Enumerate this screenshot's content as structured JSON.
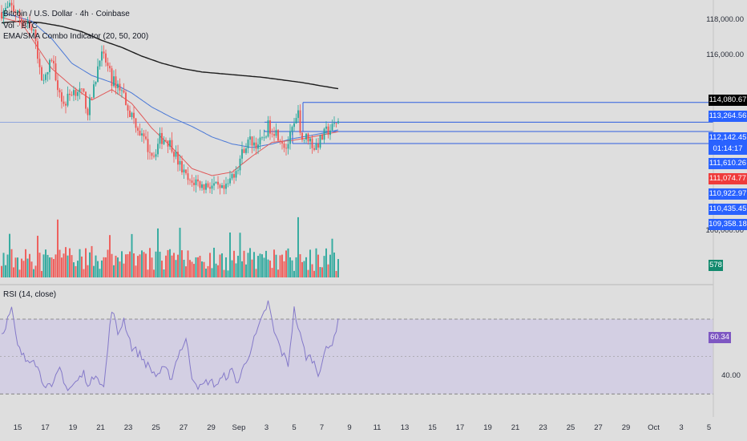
{
  "header": {
    "title": "Bitcoin / U.S. Dollar · 4h · Coinbase",
    "vol_label": "Vol · BTC",
    "indicator_label": "EMA/SMA Combo Indicator (20, 50, 200)"
  },
  "rsi": {
    "label": "RSI (14, close)",
    "current": "60.34",
    "upper": 70,
    "lower": 30,
    "ylim": [
      22,
      82
    ],
    "tick_label": "40.00"
  },
  "colors": {
    "bull": "#26a69a",
    "bear": "#ef5350",
    "ema20": "#e05a5a",
    "ema50": "#4a78d6",
    "sma200": "#1c1c1c",
    "level": "#2f5fe0",
    "rsi_line": "#8479c9",
    "rsi_band": "#cfcbe3",
    "last_price_bg": "#000000",
    "current_bg": "#ef3b3b",
    "level_bg": "#2962ff",
    "rsi_tag_bg": "#7e57c2",
    "vol_tag_bg": "#138a6e"
  },
  "price_axis": {
    "ticks": [
      "118,000.00",
      "116,000.00",
      "106,000.00"
    ]
  },
  "price_tags": [
    {
      "text": "114,080.67",
      "price": 114080.67,
      "kind": "last"
    },
    {
      "text": "113,264.56",
      "price": 113264.56,
      "kind": "level"
    },
    {
      "text": "112,142.45",
      "price": 112142.45,
      "kind": "level"
    },
    {
      "text": "01:14:17",
      "price": 111900,
      "kind": "level"
    },
    {
      "text": "111,610.26",
      "price": 111610.26,
      "kind": "level"
    },
    {
      "text": "111,074.77",
      "price": 111074.77,
      "kind": "current"
    },
    {
      "text": "110,922.97",
      "price": 110922.97,
      "kind": "level"
    },
    {
      "text": "110,435.45",
      "price": 110435.45,
      "kind": "level"
    },
    {
      "text": "109,358.18",
      "price": 109358.18,
      "kind": "level"
    }
  ],
  "volume_tag": "578",
  "time_axis": {
    "labels": [
      "15",
      "17",
      "19",
      "21",
      "23",
      "25",
      "27",
      "29",
      "Sep",
      "3",
      "5",
      "7",
      "9",
      "11",
      "13",
      "15",
      "17",
      "19",
      "21",
      "23",
      "25",
      "27",
      "29",
      "Oct",
      "3",
      "5"
    ]
  },
  "chart_data": {
    "type": "candlestick",
    "interval": "4h",
    "ylim": [
      105400,
      119100
    ],
    "levels": [
      113264.56,
      112142.45,
      111610.26,
      110922.97
    ],
    "waypoints": [
      [
        0,
        118400
      ],
      [
        5,
        118700
      ],
      [
        9,
        118100
      ],
      [
        13,
        117600
      ],
      [
        17,
        117000
      ],
      [
        19,
        115000
      ],
      [
        22,
        114600
      ],
      [
        25,
        115800
      ],
      [
        28,
        114300
      ],
      [
        31,
        113100
      ],
      [
        35,
        113900
      ],
      [
        38,
        114000
      ],
      [
        41,
        113600
      ],
      [
        43,
        112800
      ],
      [
        46,
        114000
      ],
      [
        49,
        116000
      ],
      [
        52,
        115600
      ],
      [
        55,
        114500
      ],
      [
        58,
        114300
      ],
      [
        61,
        113700
      ],
      [
        64,
        112700
      ],
      [
        67,
        112100
      ],
      [
        70,
        111300
      ],
      [
        73,
        110700
      ],
      [
        76,
        110300
      ],
      [
        79,
        111200
      ],
      [
        82,
        111200
      ],
      [
        85,
        110800
      ],
      [
        88,
        109900
      ],
      [
        91,
        109200
      ],
      [
        94,
        108600
      ],
      [
        97,
        108800
      ],
      [
        100,
        108500
      ],
      [
        103,
        108600
      ],
      [
        106,
        108500
      ],
      [
        109,
        108200
      ],
      [
        112,
        108300
      ],
      [
        115,
        109100
      ],
      [
        118,
        109700
      ],
      [
        121,
        110700
      ],
      [
        124,
        111100
      ],
      [
        127,
        110900
      ],
      [
        130,
        111000
      ],
      [
        133,
        111900
      ],
      [
        136,
        111700
      ],
      [
        139,
        111300
      ],
      [
        142,
        110700
      ],
      [
        145,
        111600
      ],
      [
        148,
        112500
      ],
      [
        150,
        111200
      ],
      [
        153,
        111300
      ],
      [
        156,
        110700
      ],
      [
        159,
        111100
      ],
      [
        162,
        111600
      ],
      [
        165,
        111800
      ],
      [
        168,
        112200
      ]
    ],
    "sma200": [
      [
        0,
        117800
      ],
      [
        10,
        117900
      ],
      [
        20,
        117800
      ],
      [
        30,
        117600
      ],
      [
        40,
        117300
      ],
      [
        50,
        116800
      ],
      [
        60,
        116400
      ],
      [
        70,
        115900
      ],
      [
        80,
        115500
      ],
      [
        90,
        115200
      ],
      [
        100,
        115000
      ],
      [
        110,
        114900
      ],
      [
        120,
        114800
      ],
      [
        130,
        114700
      ],
      [
        140,
        114550
      ],
      [
        150,
        114400
      ],
      [
        160,
        114200
      ],
      [
        168,
        114050
      ]
    ],
    "ema20": [
      [
        0,
        118100
      ],
      [
        10,
        117800
      ],
      [
        18,
        116400
      ],
      [
        25,
        115200
      ],
      [
        35,
        114200
      ],
      [
        45,
        113400
      ],
      [
        55,
        114000
      ],
      [
        65,
        113200
      ],
      [
        75,
        111800
      ],
      [
        85,
        110700
      ],
      [
        95,
        109500
      ],
      [
        105,
        109100
      ],
      [
        115,
        109300
      ],
      [
        125,
        110200
      ],
      [
        135,
        111000
      ],
      [
        145,
        111100
      ],
      [
        155,
        111300
      ],
      [
        168,
        111600
      ]
    ],
    "ema50": [
      [
        0,
        118400
      ],
      [
        15,
        117900
      ],
      [
        25,
        116900
      ],
      [
        35,
        115500
      ],
      [
        45,
        114800
      ],
      [
        55,
        114400
      ],
      [
        65,
        113800
      ],
      [
        75,
        113000
      ],
      [
        85,
        112400
      ],
      [
        95,
        111900
      ],
      [
        105,
        111300
      ],
      [
        115,
        110900
      ],
      [
        125,
        110700
      ],
      [
        135,
        110900
      ],
      [
        145,
        111200
      ],
      [
        155,
        111400
      ],
      [
        168,
        111700
      ]
    ],
    "rsi_waypoints": [
      [
        0,
        62
      ],
      [
        5,
        75
      ],
      [
        8,
        55
      ],
      [
        12,
        48
      ],
      [
        16,
        50
      ],
      [
        20,
        38
      ],
      [
        25,
        32
      ],
      [
        29,
        44
      ],
      [
        33,
        32
      ],
      [
        37,
        36
      ],
      [
        41,
        41
      ],
      [
        44,
        34
      ],
      [
        47,
        42
      ],
      [
        51,
        33
      ],
      [
        55,
        76
      ],
      [
        58,
        62
      ],
      [
        61,
        70
      ],
      [
        65,
        55
      ],
      [
        69,
        51
      ],
      [
        73,
        45
      ],
      [
        77,
        40
      ],
      [
        81,
        43
      ],
      [
        85,
        39
      ],
      [
        88,
        51
      ],
      [
        92,
        59
      ],
      [
        95,
        40
      ],
      [
        99,
        33
      ],
      [
        103,
        37
      ],
      [
        107,
        35
      ],
      [
        111,
        39
      ],
      [
        115,
        42
      ],
      [
        118,
        36
      ],
      [
        121,
        45
      ],
      [
        125,
        56
      ],
      [
        129,
        67
      ],
      [
        133,
        79
      ],
      [
        136,
        63
      ],
      [
        140,
        52
      ],
      [
        143,
        46
      ],
      [
        146,
        75
      ],
      [
        149,
        61
      ],
      [
        152,
        50
      ],
      [
        155,
        49
      ],
      [
        158,
        41
      ],
      [
        161,
        52
      ],
      [
        164,
        55
      ],
      [
        168,
        68
      ]
    ]
  }
}
